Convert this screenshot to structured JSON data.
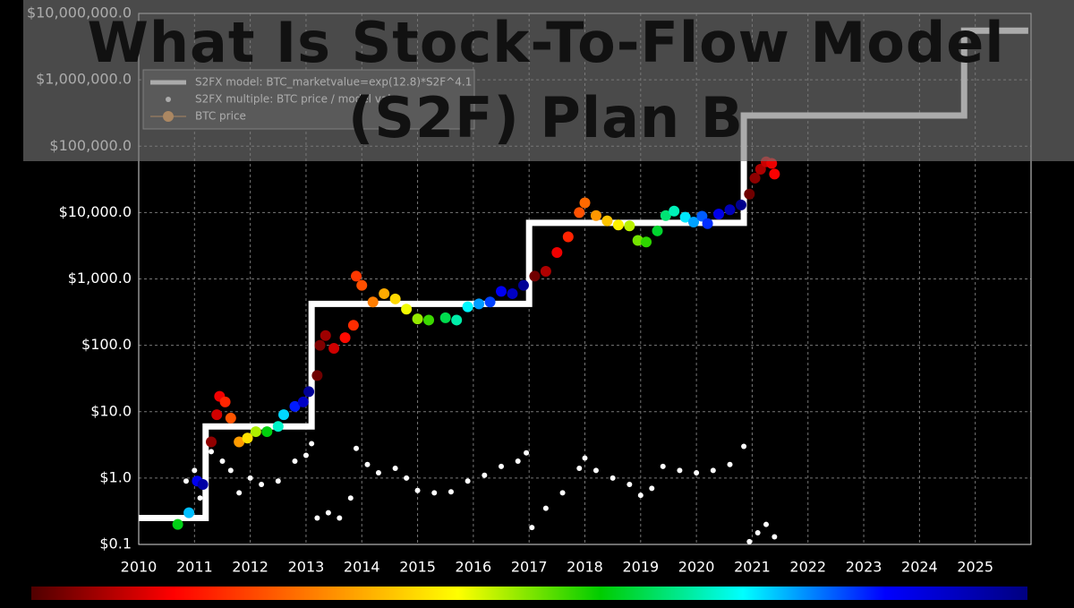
{
  "chart_data": {
    "type": "line",
    "title": "What Is Stock-To-Flow Model (S2F) Plan B",
    "log_y": true,
    "grid": true,
    "xlim": [
      2010,
      2026
    ],
    "xticks": [
      2010,
      2011,
      2012,
      2013,
      2014,
      2015,
      2016,
      2017,
      2018,
      2019,
      2020,
      2021,
      2022,
      2023,
      2024,
      2025
    ],
    "ylim": [
      0.1,
      10000000
    ],
    "yticks": [
      {
        "value": 0.1,
        "label": "$0.1"
      },
      {
        "value": 1,
        "label": "$1.0"
      },
      {
        "value": 10,
        "label": "$10.0"
      },
      {
        "value": 100,
        "label": "$100.0"
      },
      {
        "value": 1000,
        "label": "$1,000.0"
      },
      {
        "value": 10000,
        "label": "$10,000.0"
      },
      {
        "value": 100000,
        "label": "$100,000.0"
      },
      {
        "value": 1000000,
        "label": "$1,000,000.0"
      },
      {
        "value": 10000000,
        "label": "$10,000,000.0"
      }
    ],
    "colormap": [
      "#500000",
      "#ff0000",
      "#ff8000",
      "#ffff00",
      "#00cc00",
      "#00ffff",
      "#0000ff",
      "#000080"
    ],
    "legend": "upper left",
    "series": [
      {
        "name": "S2FX model: BTC_marketvalue=exp(12.8)*S2F^4.1",
        "kind": "line",
        "color": "#ffffff",
        "x": [
          2010,
          2011.2,
          2011.2,
          2013.1,
          2013.1,
          2017.0,
          2017.0,
          2020.85,
          2020.85,
          2024.8,
          2024.8,
          2025.95
        ],
        "values": [
          0.25,
          0.25,
          6,
          6,
          420,
          420,
          7000,
          7000,
          290000,
          290000,
          5500000,
          5500000
        ]
      },
      {
        "name": "S2FX multiple: BTC price / model value",
        "kind": "scatter",
        "color": "#ffffff",
        "x": [
          2010.7,
          2010.85,
          2011.0,
          2011.1,
          2011.3,
          2011.5,
          2011.65,
          2011.8,
          2012.0,
          2012.2,
          2012.5,
          2012.8,
          2013.0,
          2013.1,
          2013.2,
          2013.4,
          2013.6,
          2013.8,
          2013.9,
          2014.1,
          2014.3,
          2014.6,
          2014.8,
          2015.0,
          2015.3,
          2015.6,
          2015.9,
          2016.2,
          2016.5,
          2016.8,
          2016.95,
          2017.05,
          2017.3,
          2017.6,
          2017.9,
          2018.0,
          2018.2,
          2018.5,
          2018.8,
          2019.0,
          2019.2,
          2019.4,
          2019.7,
          2020.0,
          2020.3,
          2020.6,
          2020.85,
          2020.95,
          2021.1,
          2021.25,
          2021.4
        ],
        "values": [
          0.25,
          0.9,
          1.3,
          0.5,
          2.5,
          1.8,
          1.3,
          0.6,
          1.0,
          0.8,
          0.9,
          1.8,
          2.2,
          3.3,
          0.25,
          0.3,
          0.25,
          0.5,
          2.8,
          1.6,
          1.2,
          1.4,
          1.0,
          0.65,
          0.6,
          0.62,
          0.9,
          1.1,
          1.5,
          1.8,
          2.4,
          0.18,
          0.35,
          0.6,
          1.4,
          2.0,
          1.3,
          1.0,
          0.8,
          0.55,
          0.7,
          1.5,
          1.3,
          1.2,
          1.3,
          1.6,
          3.0,
          0.11,
          0.15,
          0.2,
          0.13
        ]
      },
      {
        "name": "BTC price",
        "kind": "scatter",
        "color": "#ffa040",
        "colored_by_cycle": true,
        "x": [
          2010.7,
          2010.9,
          2011.05,
          2011.15,
          2011.3,
          2011.4,
          2011.45,
          2011.55,
          2011.65,
          2011.8,
          2011.95,
          2012.1,
          2012.3,
          2012.5,
          2012.6,
          2012.8,
          2012.95,
          2013.05,
          2013.2,
          2013.25,
          2013.35,
          2013.5,
          2013.7,
          2013.85,
          2013.9,
          2014.0,
          2014.2,
          2014.4,
          2014.6,
          2014.8,
          2015.0,
          2015.2,
          2015.5,
          2015.7,
          2015.9,
          2016.1,
          2016.3,
          2016.5,
          2016.7,
          2016.9,
          2017.1,
          2017.3,
          2017.5,
          2017.7,
          2017.9,
          2018.0,
          2018.2,
          2018.4,
          2018.6,
          2018.8,
          2018.95,
          2019.1,
          2019.3,
          2019.45,
          2019.6,
          2019.8,
          2019.95,
          2020.1,
          2020.2,
          2020.4,
          2020.6,
          2020.8,
          2020.95,
          2021.05,
          2021.15,
          2021.25,
          2021.35,
          2021.4
        ],
        "values": [
          0.2,
          0.3,
          0.9,
          0.8,
          3.5,
          9,
          17,
          14,
          8,
          3.5,
          4,
          5,
          5,
          6,
          9,
          12,
          14,
          20,
          35,
          100,
          140,
          90,
          130,
          200,
          1100,
          800,
          450,
          600,
          500,
          350,
          250,
          240,
          260,
          240,
          380,
          420,
          450,
          650,
          600,
          800,
          1100,
          1300,
          2500,
          4300,
          10000,
          14000,
          9000,
          7500,
          6500,
          6300,
          3800,
          3600,
          5300,
          9000,
          10500,
          8500,
          7200,
          8800,
          6800,
          9500,
          11000,
          13000,
          19000,
          33000,
          45000,
          58000,
          55000,
          38000
        ]
      }
    ]
  }
}
